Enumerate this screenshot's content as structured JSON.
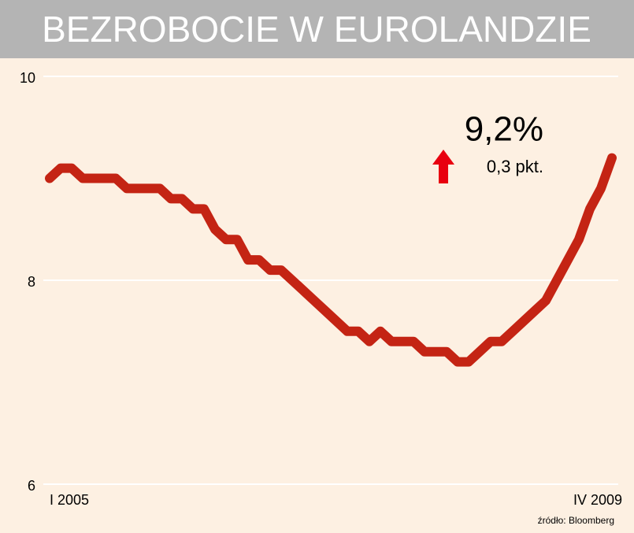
{
  "chart_data": {
    "type": "line",
    "title": "BEZROBOCIE W EUROLANDZIE",
    "categories": [
      "I 2005",
      null,
      null,
      null,
      null,
      null,
      null,
      null,
      null,
      null,
      null,
      null,
      null,
      null,
      null,
      null,
      null,
      null,
      null,
      null,
      null,
      null,
      null,
      null,
      null,
      null,
      null,
      null,
      null,
      null,
      null,
      null,
      null,
      null,
      null,
      null,
      null,
      null,
      null,
      null,
      null,
      null,
      null,
      null,
      null,
      null,
      null,
      null,
      null,
      null,
      null,
      "IV 2009"
    ],
    "values": [
      9.0,
      9.1,
      9.1,
      9.0,
      9.0,
      9.0,
      9.0,
      8.9,
      8.9,
      8.9,
      8.9,
      8.8,
      8.8,
      8.7,
      8.7,
      8.5,
      8.4,
      8.4,
      8.2,
      8.2,
      8.1,
      8.1,
      8.0,
      7.9,
      7.8,
      7.7,
      7.6,
      7.5,
      7.5,
      7.4,
      7.5,
      7.4,
      7.4,
      7.4,
      7.3,
      7.3,
      7.3,
      7.2,
      7.2,
      7.3,
      7.4,
      7.4,
      7.5,
      7.6,
      7.7,
      7.8,
      8.0,
      8.2,
      8.4,
      8.7,
      8.9,
      9.2
    ],
    "color": "#c42414",
    "ylim": [
      6,
      10
    ],
    "yticks": [
      6,
      8,
      10
    ],
    "grid": true,
    "annotation_value": "9,2%",
    "annotation_change": "0,3 pkt.",
    "source": "źródło: Bloomberg"
  }
}
